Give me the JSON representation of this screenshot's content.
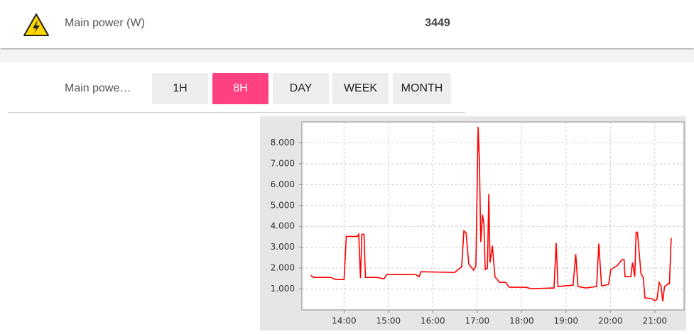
{
  "header": {
    "label": "Main power (W)",
    "value": "3449"
  },
  "tabs": {
    "label": "Main powe…",
    "buttons": [
      "1H",
      "8H",
      "DAY",
      "WEEK",
      "MONTH"
    ],
    "active": 1
  },
  "chart_data": {
    "type": "line",
    "color": "#ff0000",
    "grid": true,
    "xlim": [
      13.05,
      21.66
    ],
    "xticks": [
      {
        "value": 14,
        "label": "14:00"
      },
      {
        "value": 15,
        "label": "15:00"
      },
      {
        "value": 16,
        "label": "16:00"
      },
      {
        "value": 17,
        "label": "17:00"
      },
      {
        "value": 18,
        "label": "18:00"
      },
      {
        "value": 19,
        "label": "19:00"
      },
      {
        "value": 20,
        "label": "20:00"
      },
      {
        "value": 21,
        "label": "21:00"
      }
    ],
    "ylim": [
      0,
      9000
    ],
    "yticks": [
      {
        "value": 1000,
        "label": "1.000"
      },
      {
        "value": 2000,
        "label": "2.000"
      },
      {
        "value": 3000,
        "label": "3.000"
      },
      {
        "value": 4000,
        "label": "4.000"
      },
      {
        "value": 5000,
        "label": "5.000"
      },
      {
        "value": 6000,
        "label": "6.000"
      },
      {
        "value": 7000,
        "label": "7.000"
      },
      {
        "value": 8000,
        "label": "8.000"
      }
    ],
    "series": [
      {
        "name": "Main power",
        "color": "#ff0000",
        "x": [
          13.25,
          13.31,
          13.7,
          13.81,
          14.0,
          14.05,
          14.3,
          14.33,
          14.37,
          14.4,
          14.45,
          14.48,
          14.74,
          14.9,
          14.96,
          15.61,
          15.69,
          15.73,
          16.49,
          16.65,
          16.7,
          16.75,
          16.81,
          16.92,
          16.97,
          17.02,
          17.05,
          17.08,
          17.12,
          17.15,
          17.18,
          17.23,
          17.26,
          17.29,
          17.34,
          17.4,
          17.5,
          17.64,
          17.72,
          18.09,
          18.22,
          18.73,
          18.78,
          18.82,
          19.16,
          19.22,
          19.27,
          19.45,
          19.69,
          19.74,
          19.8,
          19.96,
          20.01,
          20.16,
          20.26,
          20.31,
          20.33,
          20.46,
          20.5,
          20.55,
          20.58,
          20.61,
          20.69,
          20.74,
          20.78,
          20.94,
          21.0,
          21.05,
          21.1,
          21.14,
          21.18,
          21.22,
          21.3,
          21.33,
          21.37
        ],
        "values": [
          1657,
          1556,
          1556,
          1454,
          1454,
          3517,
          3517,
          3620,
          1522,
          3620,
          3620,
          1556,
          1556,
          1488,
          1690,
          1690,
          1590,
          1826,
          1792,
          2063,
          3788,
          3686,
          2198,
          1894,
          2097,
          8759,
          7170,
          3247,
          4566,
          4126,
          1928,
          1995,
          5546,
          2266,
          3077,
          1590,
          1319,
          1319,
          1082,
          1082,
          1014,
          1048,
          3213,
          1116,
          1184,
          2672,
          1116,
          1048,
          1116,
          3179,
          1150,
          1217,
          1928,
          2130,
          2401,
          2401,
          1590,
          1590,
          2266,
          1590,
          3720,
          3720,
          1725,
          1556,
          575,
          541,
          440,
          507,
          1319,
          1150,
          406,
          1116,
          1251,
          1251,
          3449
        ]
      }
    ]
  }
}
